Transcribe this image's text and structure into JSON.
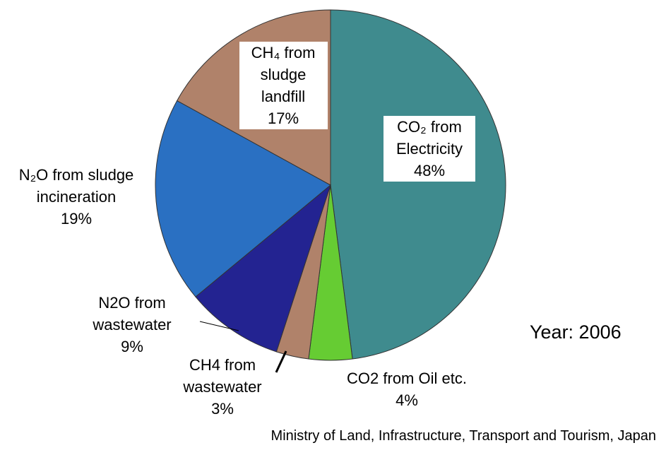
{
  "chart_data": {
    "type": "pie",
    "categories": [
      "CO₂ from Electricity",
      "CO2 from Oil etc.",
      "CH4 from wastewater",
      "N2O from wastewater",
      "N₂O from sludge incineration",
      "CH₄ from sludge landfill"
    ],
    "values": [
      48,
      4,
      3,
      9,
      19,
      17
    ],
    "value_labels": [
      "48%",
      "4%",
      "3%",
      "9%",
      "19%",
      "17%"
    ],
    "colors": [
      "#3f8b8e",
      "#66cc33",
      "#b0826a",
      "#232391",
      "#2a70c2",
      "#b0826a"
    ],
    "annotation": "Year: 2006",
    "source": "Ministry of Land, Infrastructure, Transport and Tourism, Japan"
  }
}
